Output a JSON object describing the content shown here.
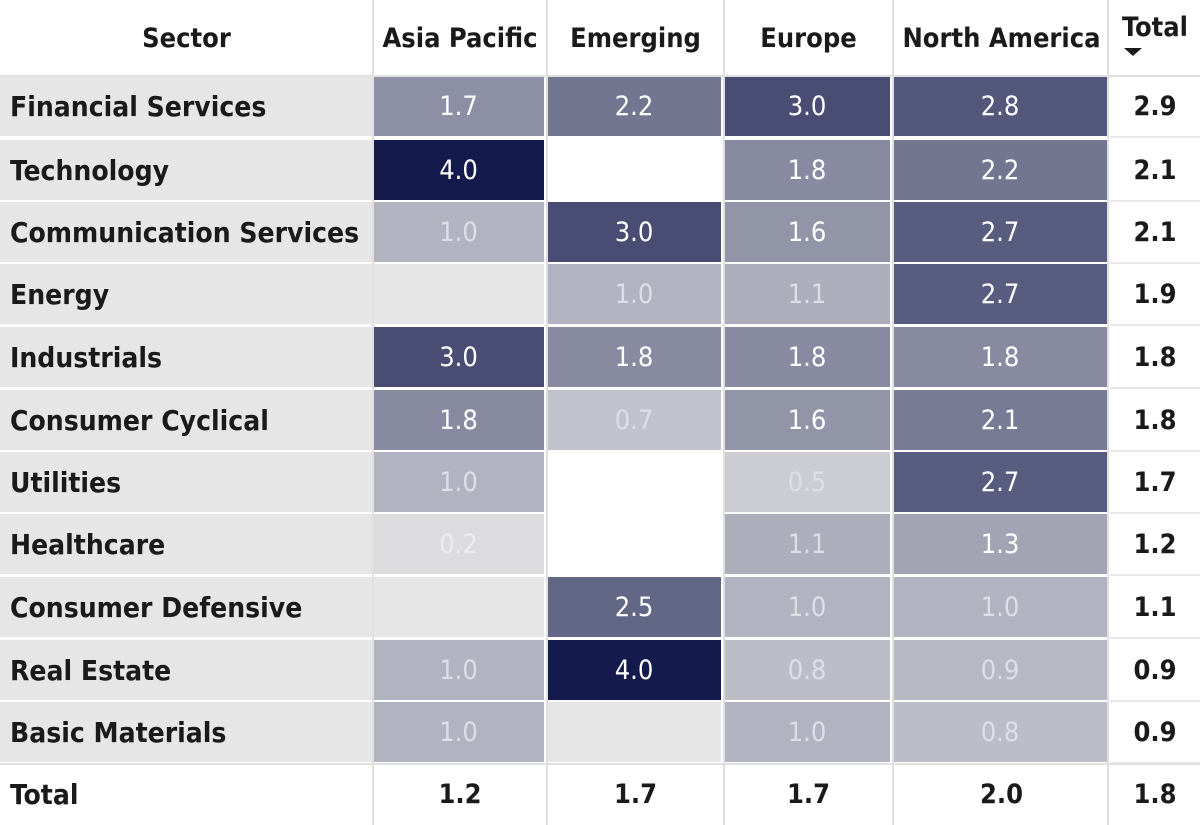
{
  "chart_data": {
    "type": "heatmap",
    "title": "",
    "row_header": "Sector",
    "columns": [
      "Asia Pacific",
      "Emerging",
      "Europe",
      "North America"
    ],
    "total_label": "Total",
    "sort_indicator": "descending",
    "rows": [
      {
        "name": "Financial Services",
        "values": [
          1.7,
          2.2,
          3.0,
          2.8
        ],
        "total": "2.9"
      },
      {
        "name": "Technology",
        "values": [
          4.0,
          null,
          1.8,
          2.2
        ],
        "total": "2.1"
      },
      {
        "name": "Communication Services",
        "values": [
          1.0,
          3.0,
          1.6,
          2.7
        ],
        "total": "2.1"
      },
      {
        "name": "Energy",
        "values": [
          null,
          1.0,
          1.1,
          2.7
        ],
        "total": "1.9"
      },
      {
        "name": "Industrials",
        "values": [
          3.0,
          1.8,
          1.8,
          1.8
        ],
        "total": "1.8"
      },
      {
        "name": "Consumer Cyclical",
        "values": [
          1.8,
          0.7,
          1.6,
          2.1
        ],
        "total": "1.8"
      },
      {
        "name": "Utilities",
        "values": [
          1.0,
          null,
          0.5,
          2.7
        ],
        "total": "1.7"
      },
      {
        "name": "Healthcare",
        "values": [
          0.2,
          null,
          1.1,
          1.3
        ],
        "total": "1.2"
      },
      {
        "name": "Consumer Defensive",
        "values": [
          null,
          2.5,
          1.0,
          1.0
        ],
        "total": "1.1"
      },
      {
        "name": "Real Estate",
        "values": [
          1.0,
          4.0,
          0.8,
          0.9
        ],
        "total": "0.9"
      },
      {
        "name": "Basic Materials",
        "values": [
          1.0,
          null,
          1.0,
          0.8
        ],
        "total": "0.9"
      }
    ],
    "column_totals": [
      "1.2",
      "1.7",
      "1.7",
      "2.0"
    ],
    "grand_total": "1.8",
    "blank_cells": [
      [
        1,
        1
      ],
      [
        3,
        0
      ],
      [
        6,
        1
      ],
      [
        7,
        1
      ],
      [
        8,
        0
      ],
      [
        10,
        1
      ]
    ],
    "white_blank_cells": [
      [
        1,
        1
      ],
      [
        6,
        1
      ],
      [
        7,
        1
      ]
    ],
    "color_scale": {
      "min": 0,
      "max": 4.0,
      "low": "#e6e6e6",
      "high": "#141a4c"
    }
  }
}
